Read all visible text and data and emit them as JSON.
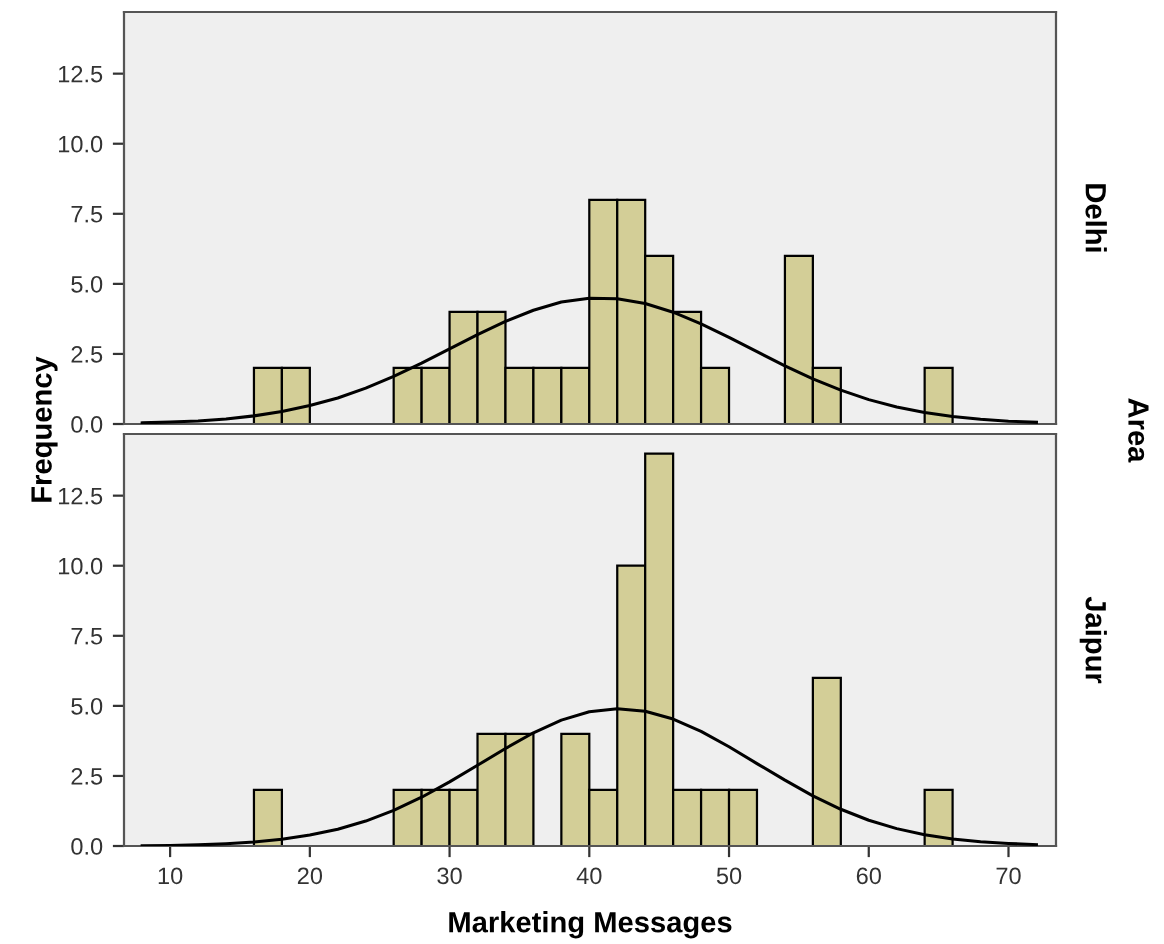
{
  "chart_data": [
    {
      "type": "histogram",
      "y2label": "Delhi",
      "ylabel": "Frequency",
      "annotations": [
        "Area"
      ],
      "tick_labels": "y",
      "color": "#d3ce97",
      "grid": false,
      "bins": [
        16,
        18,
        20,
        22,
        24,
        26,
        28,
        30,
        32,
        34,
        36,
        38,
        40,
        42,
        44,
        46,
        48,
        50,
        52,
        54,
        56,
        58,
        60,
        62,
        64,
        66
      ],
      "values": [
        2,
        2,
        0,
        0,
        0,
        2,
        2,
        4,
        4,
        2,
        2,
        2,
        8,
        8,
        6,
        4,
        2,
        0,
        0,
        6,
        2,
        0,
        0,
        0,
        2
      ],
      "xlim": [
        6.7,
        73.4
      ],
      "ylim": [
        0,
        14.7
      ],
      "yticks": [
        {
          "value": 0,
          "label": "0.0"
        },
        {
          "value": 2.5,
          "label": "2.5"
        },
        {
          "value": 5,
          "label": "5.0"
        },
        {
          "value": 7.5,
          "label": "7.5"
        },
        {
          "value": 10,
          "label": "10.0"
        },
        {
          "value": 12.5,
          "label": "12.5"
        }
      ],
      "series": [
        {
          "type": "line",
          "color": "#000000",
          "x": [
            8,
            10,
            12,
            14,
            16,
            18,
            20,
            22,
            24,
            26,
            28,
            30,
            32,
            34,
            36,
            38,
            40,
            42,
            44,
            46,
            48,
            50,
            52,
            54,
            56,
            58,
            60,
            62,
            64,
            66,
            68,
            70,
            72
          ],
          "values": [
            0.04,
            0.07,
            0.11,
            0.18,
            0.29,
            0.45,
            0.66,
            0.93,
            1.28,
            1.7,
            2.17,
            2.68,
            3.19,
            3.66,
            4.06,
            4.35,
            4.49,
            4.47,
            4.3,
            3.99,
            3.57,
            3.09,
            2.58,
            2.07,
            1.61,
            1.21,
            0.87,
            0.61,
            0.41,
            0.27,
            0.17,
            0.1,
            0.06
          ]
        }
      ]
    },
    {
      "type": "histogram",
      "y2label": "Jaipur",
      "xlabel": "Marketing Messages",
      "color": "#d3ce97",
      "grid": false,
      "bins": [
        16,
        18,
        20,
        22,
        24,
        26,
        28,
        30,
        32,
        34,
        36,
        38,
        40,
        42,
        44,
        46,
        48,
        50,
        52,
        54,
        56,
        58,
        60,
        62,
        64,
        66
      ],
      "values": [
        2,
        0,
        0,
        0,
        0,
        2,
        2,
        2,
        4,
        4,
        0,
        4,
        2,
        10,
        14,
        2,
        2,
        2,
        0,
        0,
        6,
        0,
        0,
        0,
        2
      ],
      "xlim": [
        6.7,
        73.4
      ],
      "ylim": [
        0,
        14.7
      ],
      "xticks": [
        10,
        20,
        30,
        40,
        50,
        60,
        70
      ],
      "yticks": [
        {
          "value": 0,
          "label": "0.0"
        },
        {
          "value": 2.5,
          "label": "2.5"
        },
        {
          "value": 5,
          "label": "5.0"
        },
        {
          "value": 7.5,
          "label": "7.5"
        },
        {
          "value": 10,
          "label": "10.0"
        },
        {
          "value": 12.5,
          "label": "12.5"
        }
      ],
      "series": [
        {
          "type": "line",
          "color": "#000000",
          "x": [
            8,
            10,
            12,
            14,
            16,
            18,
            20,
            22,
            24,
            26,
            28,
            30,
            32,
            34,
            36,
            38,
            40,
            42,
            44,
            46,
            48,
            50,
            52,
            54,
            56,
            58,
            60,
            62,
            64,
            66,
            68,
            70,
            72
          ],
          "values": [
            0.01,
            0.02,
            0.04,
            0.08,
            0.14,
            0.24,
            0.39,
            0.6,
            0.89,
            1.27,
            1.74,
            2.29,
            2.88,
            3.48,
            4.04,
            4.49,
            4.79,
            4.9,
            4.81,
            4.53,
            4.09,
            3.54,
            2.94,
            2.35,
            1.79,
            1.31,
            0.92,
            0.62,
            0.4,
            0.25,
            0.15,
            0.09,
            0.05
          ]
        }
      ]
    }
  ]
}
